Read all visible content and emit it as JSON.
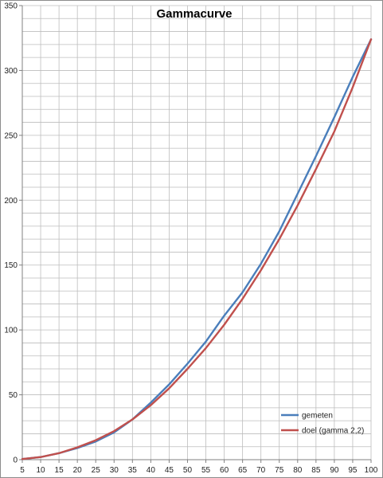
{
  "chart_data": {
    "type": "line",
    "title": "Gammacurve",
    "xlabel": "",
    "ylabel": "",
    "x": [
      5,
      10,
      15,
      20,
      25,
      30,
      35,
      40,
      45,
      50,
      55,
      60,
      65,
      70,
      75,
      80,
      85,
      90,
      95,
      100
    ],
    "ylim": [
      0,
      350
    ],
    "yticks": [
      0,
      50,
      100,
      150,
      200,
      250,
      300,
      350
    ],
    "grid": true,
    "legend_position": "bottom-right",
    "series": [
      {
        "name": "gemeten",
        "color": "#4a7ebb",
        "values": [
          0.5,
          2,
          5,
          9,
          14,
          21,
          31,
          44,
          58,
          74,
          91,
          111,
          129,
          151,
          176,
          205,
          234,
          264,
          295,
          324
        ]
      },
      {
        "name": "doel (gamma  2,2)",
        "color": "#c0504d",
        "values": [
          0.5,
          2,
          5,
          9.5,
          15,
          22,
          31,
          42,
          55,
          70,
          86,
          104,
          124,
          146,
          170,
          196,
          224,
          253,
          287,
          324
        ]
      }
    ]
  }
}
